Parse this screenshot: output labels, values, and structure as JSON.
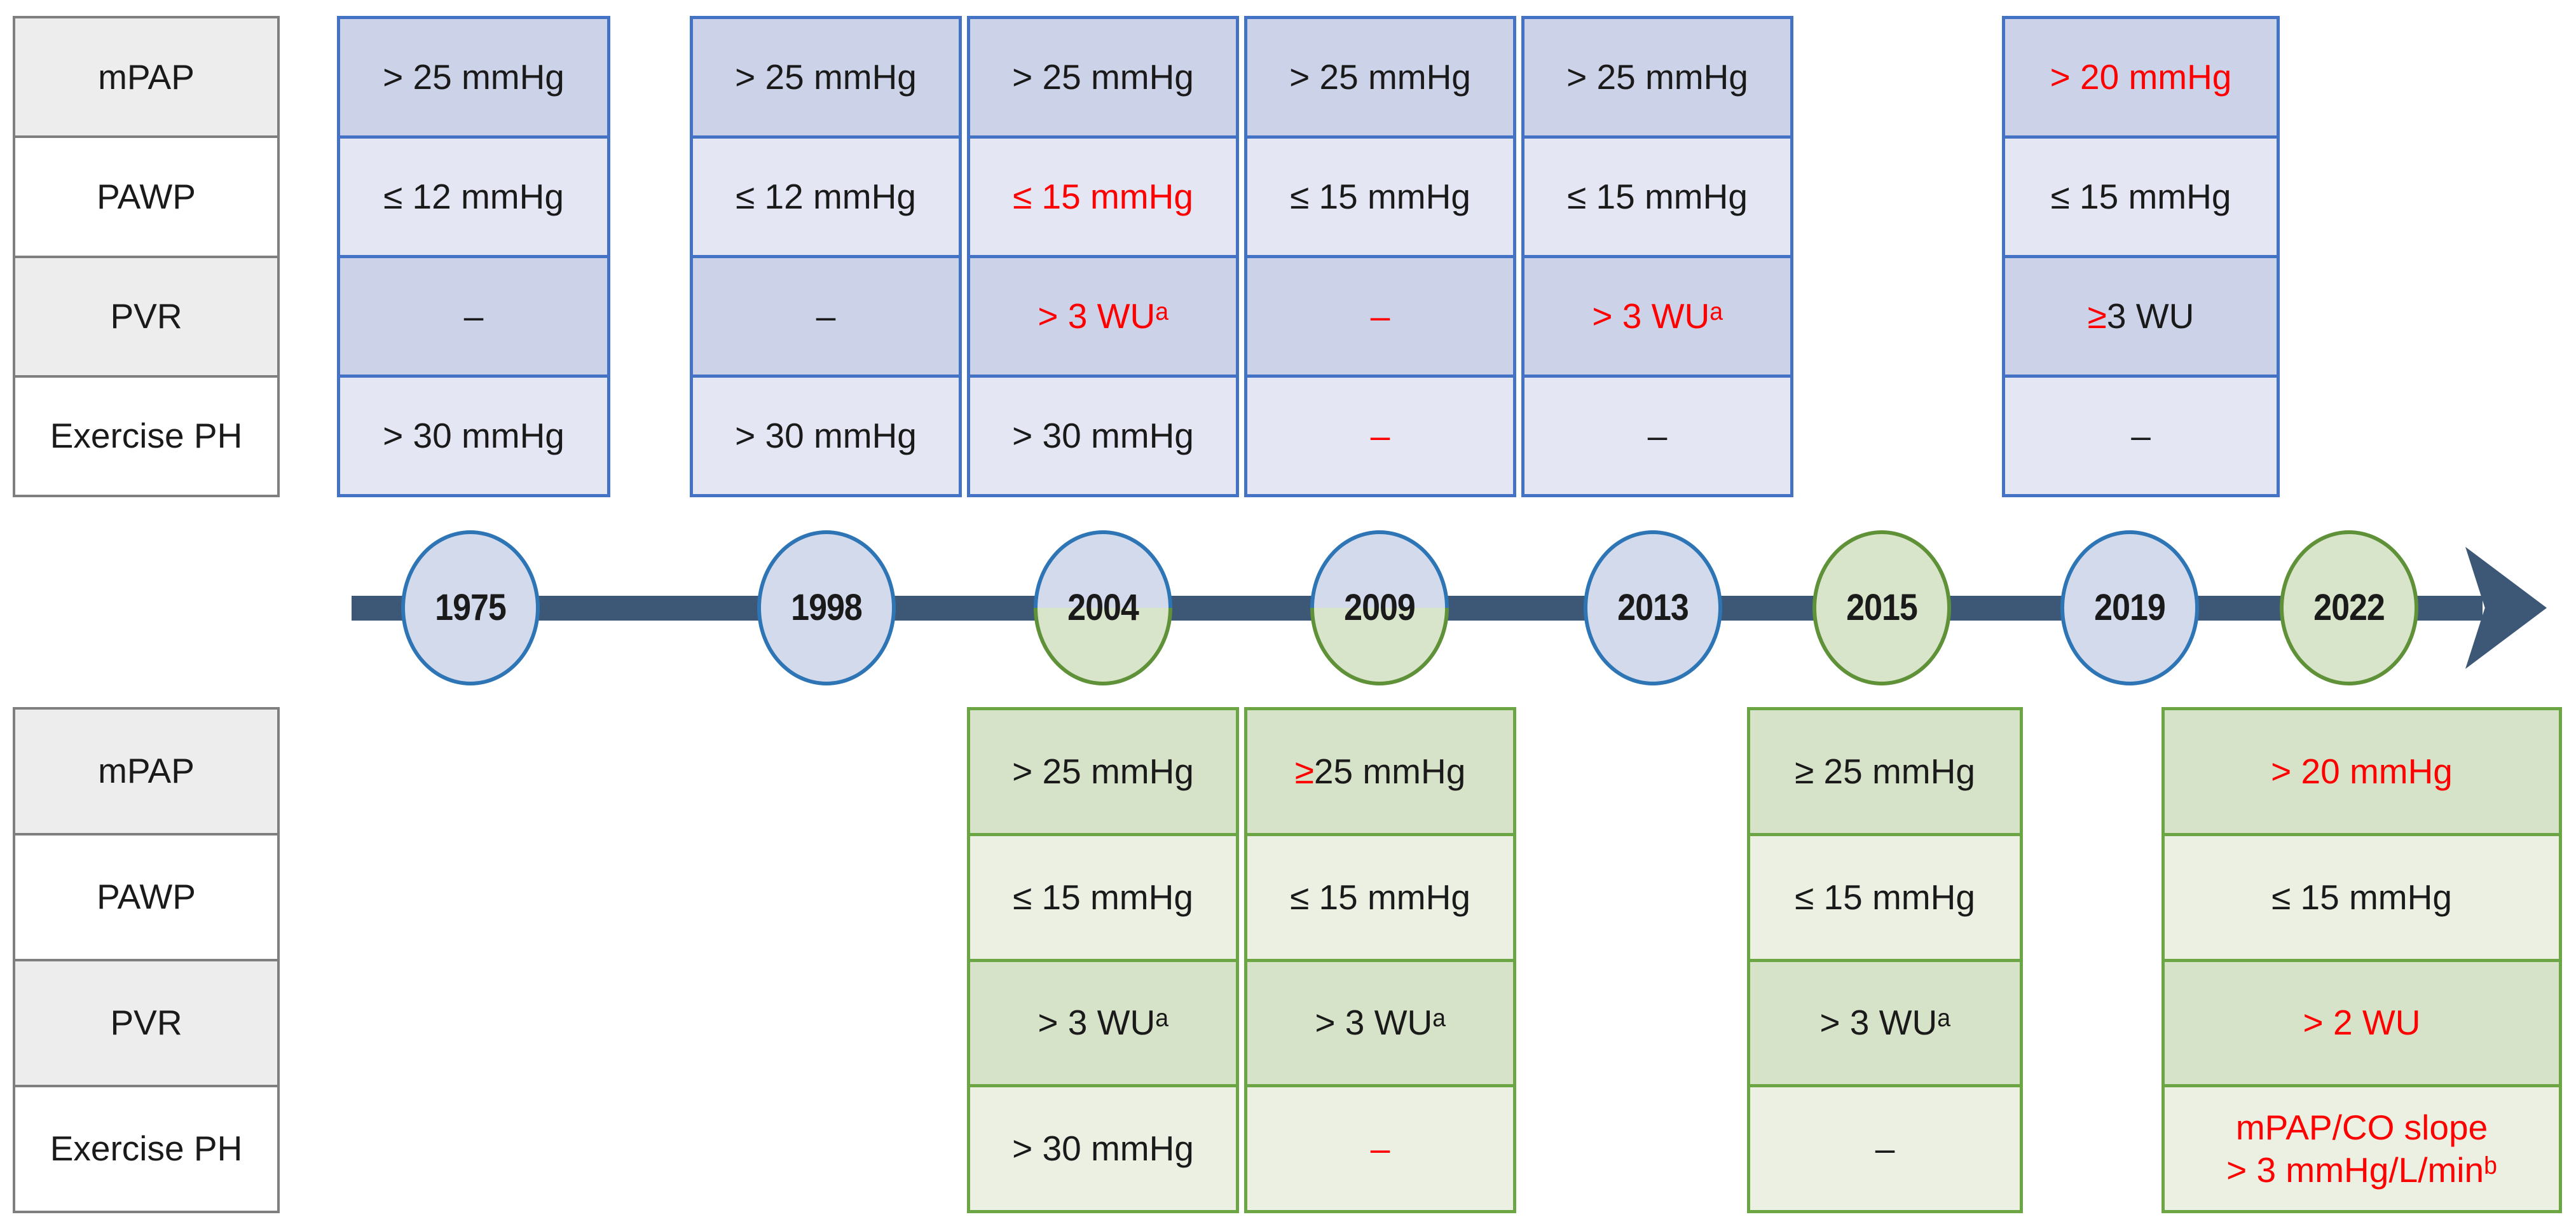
{
  "palette": {
    "red_text": "#FF0000",
    "black_text": "#1A1A1A",
    "blue_table_border": "#4472C4",
    "blue_row_dark": "#CCD3E8",
    "blue_row_light": "#E4E7F3",
    "green_table_border": "#6CA544",
    "green_row_dark": "#D7E3C9",
    "green_row_light": "#EBF0E3",
    "gray_table_border": "#7F7F7F",
    "gray_row_fill": "#EDEDED",
    "timeline_bar": "#3D5777",
    "circle_blue_border": "#2E75B6",
    "circle_blue_fill": "#D3DAEC",
    "circle_green_border": "#5F9138",
    "circle_green_fill": "#D9E5CA"
  },
  "row_labels": [
    "mPAP",
    "PAWP",
    "PVR",
    "Exercise PH"
  ],
  "top_tables": [
    {
      "year": "1975",
      "cells": [
        {
          "text": "> 25 mmHg"
        },
        {
          "text": "≤ 12 mmHg"
        },
        {
          "text": "–"
        },
        {
          "text": "> 30 mmHg"
        }
      ]
    },
    {
      "year": "1998",
      "cells": [
        {
          "text": "> 25 mmHg"
        },
        {
          "text": "≤ 12 mmHg"
        },
        {
          "text": "–"
        },
        {
          "text": "> 30 mmHg"
        }
      ]
    },
    {
      "year": "2004",
      "cells": [
        {
          "text": "> 25 mmHg"
        },
        {
          "text": "≤ 15 mmHg",
          "red": true
        },
        {
          "text": "> 3 WUᵃ",
          "red": true
        },
        {
          "text": "> 30 mmHg"
        }
      ]
    },
    {
      "year": "2009",
      "cells": [
        {
          "text": "> 25 mmHg"
        },
        {
          "text": "≤ 15 mmHg"
        },
        {
          "text": "–",
          "red": true
        },
        {
          "text": "–",
          "red": true
        }
      ]
    },
    {
      "year": "2013",
      "cells": [
        {
          "text": "> 25 mmHg"
        },
        {
          "text": "≤ 15 mmHg"
        },
        {
          "text": "> 3 WUᵃ",
          "red": true
        },
        {
          "text": "–"
        }
      ]
    },
    {
      "year": "2019",
      "cells": [
        {
          "text": "> 20 mmHg",
          "red": true
        },
        {
          "text": "≤ 15 mmHg"
        },
        {
          "parts": [
            {
              "text": "≥",
              "red": true
            },
            {
              "text": " 3 WU"
            }
          ]
        },
        {
          "text": "–"
        }
      ]
    }
  ],
  "bottom_tables": [
    {
      "year": "2004",
      "cells": [
        {
          "text": "> 25 mmHg"
        },
        {
          "text": "≤ 15 mmHg"
        },
        {
          "text": "> 3 WUᵃ"
        },
        {
          "text": "> 30 mmHg"
        }
      ]
    },
    {
      "year": "2009",
      "cells": [
        {
          "parts": [
            {
              "text": "≥",
              "red": true
            },
            {
              "text": " 25 mmHg"
            }
          ]
        },
        {
          "text": "≤ 15 mmHg"
        },
        {
          "text": "> 3 WUᵃ"
        },
        {
          "text": "–",
          "red": true
        }
      ]
    },
    {
      "year": "2015",
      "cells": [
        {
          "text": "≥ 25 mmHg"
        },
        {
          "text": "≤ 15 mmHg"
        },
        {
          "text": "> 3 WUᵃ"
        },
        {
          "text": "–"
        }
      ]
    },
    {
      "year": "2022",
      "cells": [
        {
          "text": "> 20 mmHg",
          "red": true
        },
        {
          "text": "≤ 15 mmHg"
        },
        {
          "text": "> 2 WU",
          "red": true
        },
        {
          "text": "mPAP/CO slope\n> 3 mmHg/L/minᵇ",
          "red": true
        }
      ]
    }
  ],
  "timeline": {
    "years": [
      {
        "label": "1975",
        "theme": "blue"
      },
      {
        "label": "1998",
        "theme": "blue"
      },
      {
        "label": "2004",
        "theme": "split"
      },
      {
        "label": "2009",
        "theme": "split"
      },
      {
        "label": "2013",
        "theme": "blue"
      },
      {
        "label": "2015",
        "theme": "green"
      },
      {
        "label": "2019",
        "theme": "blue"
      },
      {
        "label": "2022",
        "theme": "green"
      }
    ]
  }
}
